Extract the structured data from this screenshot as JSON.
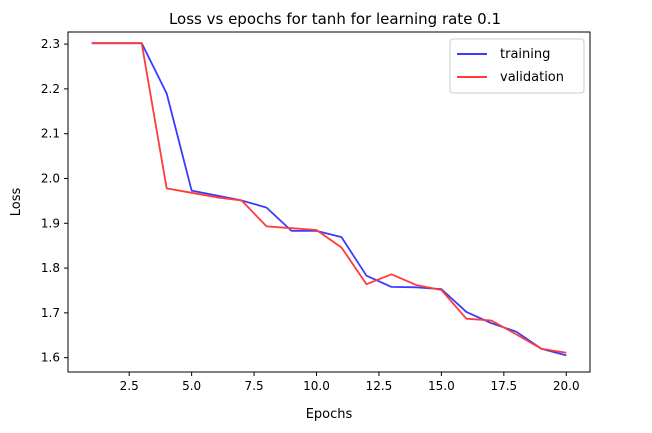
{
  "chart_data": {
    "type": "line",
    "title": "Loss vs epochs for tanh for learning rate 0.1",
    "xlabel": "Epochs",
    "ylabel": "Loss",
    "xlim": [
      0.05,
      20.95
    ],
    "ylim": [
      1.568,
      2.327
    ],
    "xticks": [
      2.5,
      5.0,
      7.5,
      10.0,
      12.5,
      15.0,
      17.5,
      20.0
    ],
    "xtick_labels": [
      "2.5",
      "5.0",
      "7.5",
      "10.0",
      "12.5",
      "15.0",
      "17.5",
      "20.0"
    ],
    "yticks": [
      1.6,
      1.7,
      1.8,
      1.9,
      2.0,
      2.1,
      2.2,
      2.3
    ],
    "ytick_labels": [
      "1.6",
      "1.7",
      "1.8",
      "1.9",
      "2.0",
      "2.1",
      "2.2",
      "2.3"
    ],
    "legend_position": "top-right",
    "grid": false,
    "x": [
      1,
      2,
      3,
      4,
      5,
      6,
      7,
      8,
      9,
      10,
      11,
      12,
      13,
      14,
      15,
      16,
      17,
      18,
      19,
      20
    ],
    "series": [
      {
        "name": "training",
        "color": "#3b3bff",
        "values": [
          2.302,
          2.302,
          2.302,
          2.19,
          1.973,
          1.962,
          1.951,
          1.935,
          1.883,
          1.883,
          1.869,
          1.783,
          1.758,
          1.757,
          1.753,
          1.702,
          1.677,
          1.658,
          1.62,
          1.605
        ]
      },
      {
        "name": "validation",
        "color": "#ff3b3b",
        "values": [
          2.302,
          2.302,
          2.302,
          1.978,
          1.968,
          1.958,
          1.951,
          1.893,
          1.889,
          1.885,
          1.846,
          1.764,
          1.786,
          1.762,
          1.751,
          1.687,
          1.683,
          1.652,
          1.62,
          1.611
        ]
      }
    ]
  }
}
